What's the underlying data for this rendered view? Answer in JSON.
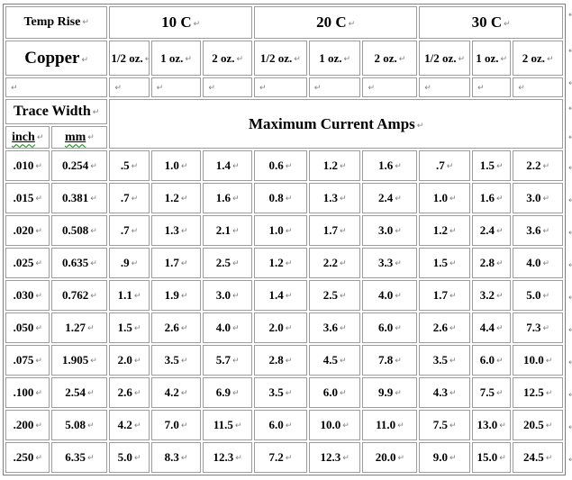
{
  "document": {
    "formatting_mark": "↵",
    "header": {
      "temp_rise": "Temp Rise",
      "copper": "Copper",
      "temp_columns": [
        "10 C",
        "20 C",
        "30 C"
      ],
      "oz_columns": [
        "1/2 oz.",
        "1 oz.",
        "2 oz.",
        "1/2 oz.",
        "1 oz.",
        "2 oz.",
        "1/2 oz.",
        "1 oz.",
        "2 oz."
      ],
      "trace_width": "Trace Width",
      "max_current": "Maximum Current Amps",
      "inch": "inch",
      "mm": "mm"
    },
    "rows": [
      {
        "inch": ".010",
        "mm": "0.254",
        "amps": [
          ".5",
          "1.0",
          "1.4",
          "0.6",
          "1.2",
          "1.6",
          ".7",
          "1.5",
          "2.2"
        ]
      },
      {
        "inch": ".015",
        "mm": "0.381",
        "amps": [
          ".7",
          "1.2",
          "1.6",
          "0.8",
          "1.3",
          "2.4",
          "1.0",
          "1.6",
          "3.0"
        ]
      },
      {
        "inch": ".020",
        "mm": "0.508",
        "amps": [
          ".7",
          "1.3",
          "2.1",
          "1.0",
          "1.7",
          "3.0",
          "1.2",
          "2.4",
          "3.6"
        ]
      },
      {
        "inch": ".025",
        "mm": "0.635",
        "amps": [
          ".9",
          "1.7",
          "2.5",
          "1.2",
          "2.2",
          "3.3",
          "1.5",
          "2.8",
          "4.0"
        ]
      },
      {
        "inch": ".030",
        "mm": "0.762",
        "amps": [
          "1.1",
          "1.9",
          "3.0",
          "1.4",
          "2.5",
          "4.0",
          "1.7",
          "3.2",
          "5.0"
        ]
      },
      {
        "inch": ".050",
        "mm": "1.27",
        "amps": [
          "1.5",
          "2.6",
          "4.0",
          "2.0",
          "3.6",
          "6.0",
          "2.6",
          "4.4",
          "7.3"
        ]
      },
      {
        "inch": ".075",
        "mm": "1.905",
        "amps": [
          "2.0",
          "3.5",
          "5.7",
          "2.8",
          "4.5",
          "7.8",
          "3.5",
          "6.0",
          "10.0"
        ]
      },
      {
        "inch": ".100",
        "mm": "2.54",
        "amps": [
          "2.6",
          "4.2",
          "6.9",
          "3.5",
          "6.0",
          "9.9",
          "4.3",
          "7.5",
          "12.5"
        ]
      },
      {
        "inch": ".200",
        "mm": "5.08",
        "amps": [
          "4.2",
          "7.0",
          "11.5",
          "6.0",
          "10.0",
          "11.0",
          "7.5",
          "13.0",
          "20.5"
        ]
      },
      {
        "inch": ".250",
        "mm": "6.35",
        "amps": [
          "5.0",
          "8.3",
          "12.3",
          "7.2",
          "12.3",
          "20.0",
          "9.0",
          "15.0",
          "24.5"
        ]
      }
    ],
    "colors": {
      "cell_border": "#9c9c9c",
      "table_border": "#7f7f7f",
      "formatting_mark": "#808080",
      "spell_underline": "#008000",
      "text": "#000000",
      "background": "#ffffff"
    }
  }
}
